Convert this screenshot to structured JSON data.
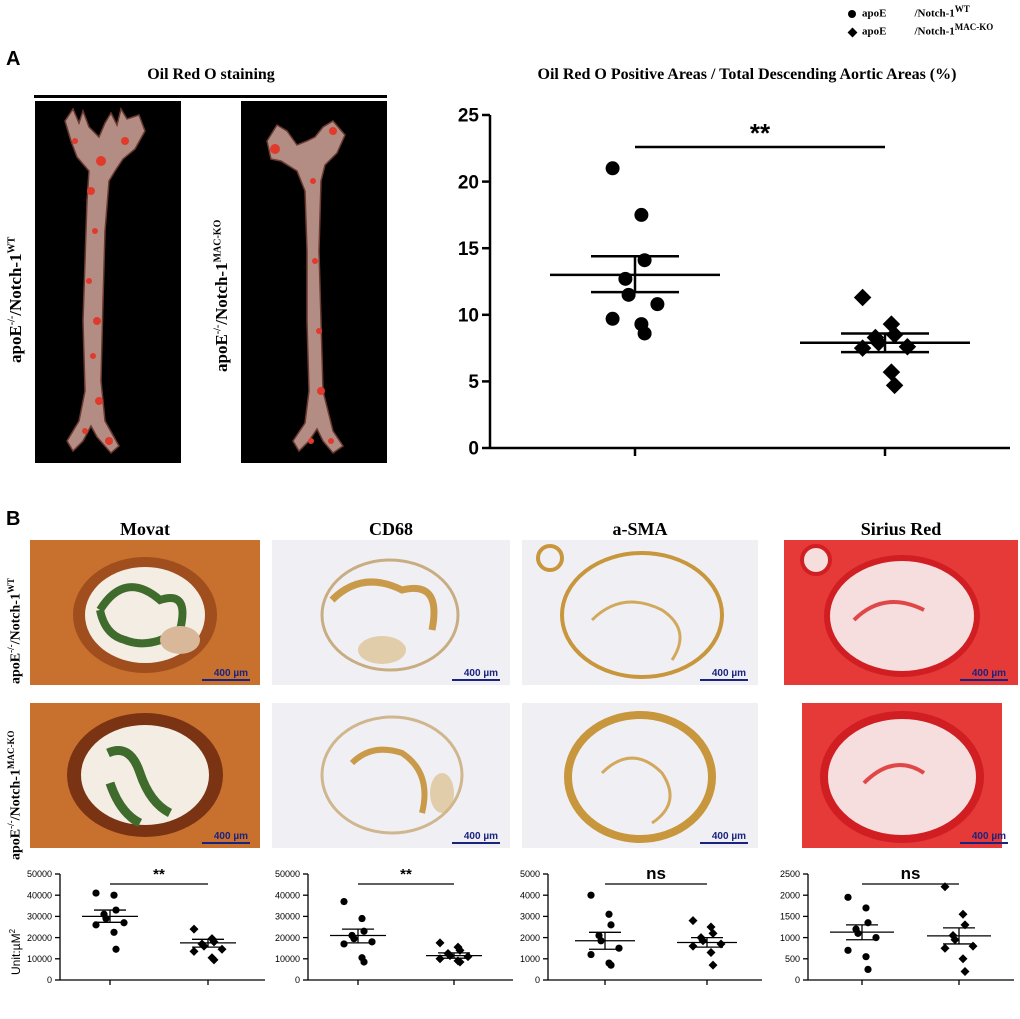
{
  "legend": {
    "items": [
      {
        "prefix": "apoE",
        "gene": "/Notch-1",
        "sup": "WT",
        "marker": "circle"
      },
      {
        "prefix": "apoE",
        "gene": "/Notch-1",
        "sup": "MAC-KO",
        "marker": "diamond"
      }
    ]
  },
  "panelA": {
    "letter": "A",
    "staining_title": "Oil Red O staining",
    "chart_title": "Oil Red O Positive Areas / Total Descending Aortic Areas (%)",
    "row_label_wt": {
      "base": "apoE",
      "sup1": "-/-",
      "mid": "/Notch-1",
      "sup2": "WT"
    },
    "row_label_ko": {
      "base": "apoE",
      "sup1": "-/-",
      "mid": "/Notch-1",
      "sup2": "MAC-KO"
    },
    "significance": "**"
  },
  "panelB": {
    "letter": "B",
    "columns": [
      "Movat",
      "CD68",
      "a-SMA",
      "Sirius Red"
    ],
    "scale_label": "400 µm",
    "row_label_wt": {
      "base": "apoE",
      "sup1": "-/-",
      "mid": "/Notch-1",
      "sup2": "WT"
    },
    "row_label_ko": {
      "base": "apoE",
      "sup1": "-/-",
      "mid": "/Notch-1",
      "sup2": "MAC-KO"
    },
    "unit_label": "Unit:µM",
    "unit_sup": "2"
  },
  "chart_data": [
    {
      "type": "scatter",
      "id": "A",
      "ylim": [
        0,
        25
      ],
      "yticks": [
        0,
        5,
        10,
        15,
        20,
        25
      ],
      "significance": "**",
      "groups": [
        {
          "marker": "circle",
          "values": [
            21,
            17.5,
            14.1,
            12.7,
            11.5,
            10.8,
            9.7,
            9.3,
            8.6
          ],
          "mean": 13.0,
          "sem_low": 11.7,
          "sem_high": 14.4
        },
        {
          "marker": "diamond",
          "values": [
            11.3,
            9.3,
            8.5,
            8.3,
            7.9,
            7.6,
            7.5,
            5.7,
            4.7
          ],
          "mean": 7.9,
          "sem_low": 7.2,
          "sem_high": 8.6
        }
      ]
    },
    {
      "type": "scatter",
      "id": "Movat",
      "ylim": [
        0,
        50000
      ],
      "yticks": [
        0,
        10000,
        20000,
        30000,
        40000,
        50000
      ],
      "significance": "**",
      "groups": [
        {
          "marker": "circle",
          "values": [
            41000,
            40000,
            33000,
            31000,
            29000,
            27000,
            26000,
            22500,
            14500
          ],
          "mean": 30000,
          "sem_low": 27200,
          "sem_high": 33000
        },
        {
          "marker": "diamond",
          "values": [
            24000,
            19500,
            18000,
            17000,
            16000,
            14500,
            13500,
            10500,
            9500
          ],
          "mean": 17500,
          "sem_low": 15500,
          "sem_high": 19200
        }
      ]
    },
    {
      "type": "scatter",
      "id": "CD68",
      "ylim": [
        0,
        50000
      ],
      "yticks": [
        0,
        10000,
        20000,
        30000,
        40000,
        50000
      ],
      "significance": "**",
      "groups": [
        {
          "marker": "circle",
          "values": [
            37000,
            29000,
            23000,
            21000,
            19500,
            18000,
            17000,
            10500,
            8500
          ],
          "mean": 21000,
          "sem_low": 17500,
          "sem_high": 24000
        },
        {
          "marker": "diamond",
          "values": [
            17500,
            15500,
            14000,
            12500,
            11500,
            11000,
            10000,
            9000,
            8500
          ],
          "mean": 11500,
          "sem_low": 10300,
          "sem_high": 12800
        }
      ]
    },
    {
      "type": "scatter",
      "id": "a-SMA",
      "ylim": [
        0,
        5000
      ],
      "yticks": [
        0,
        1000,
        2000,
        3000,
        4000,
        5000
      ],
      "significance": "ns",
      "groups": [
        {
          "marker": "circle",
          "values": [
            4000,
            3100,
            2600,
            2100,
            1850,
            1500,
            1200,
            800,
            700
          ],
          "mean": 1850,
          "sem_low": 1450,
          "sem_high": 2250
        },
        {
          "marker": "diamond",
          "values": [
            2800,
            2500,
            2200,
            2000,
            1850,
            1700,
            1600,
            1300,
            700
          ],
          "mean": 1770,
          "sem_low": 1550,
          "sem_high": 2000
        }
      ]
    },
    {
      "type": "scatter",
      "id": "Sirius Red",
      "ylim": [
        0,
        2500
      ],
      "yticks": [
        0,
        500,
        1000,
        1500,
        2000,
        2500
      ],
      "significance": "ns",
      "groups": [
        {
          "marker": "circle",
          "values": [
            1950,
            1700,
            1350,
            1200,
            1100,
            1000,
            700,
            550,
            250
          ],
          "mean": 1130,
          "sem_low": 950,
          "sem_high": 1300
        },
        {
          "marker": "diamond",
          "values": [
            2200,
            1550,
            1300,
            1050,
            950,
            800,
            750,
            500,
            200
          ],
          "mean": 1040,
          "sem_low": 850,
          "sem_high": 1230
        }
      ]
    }
  ]
}
